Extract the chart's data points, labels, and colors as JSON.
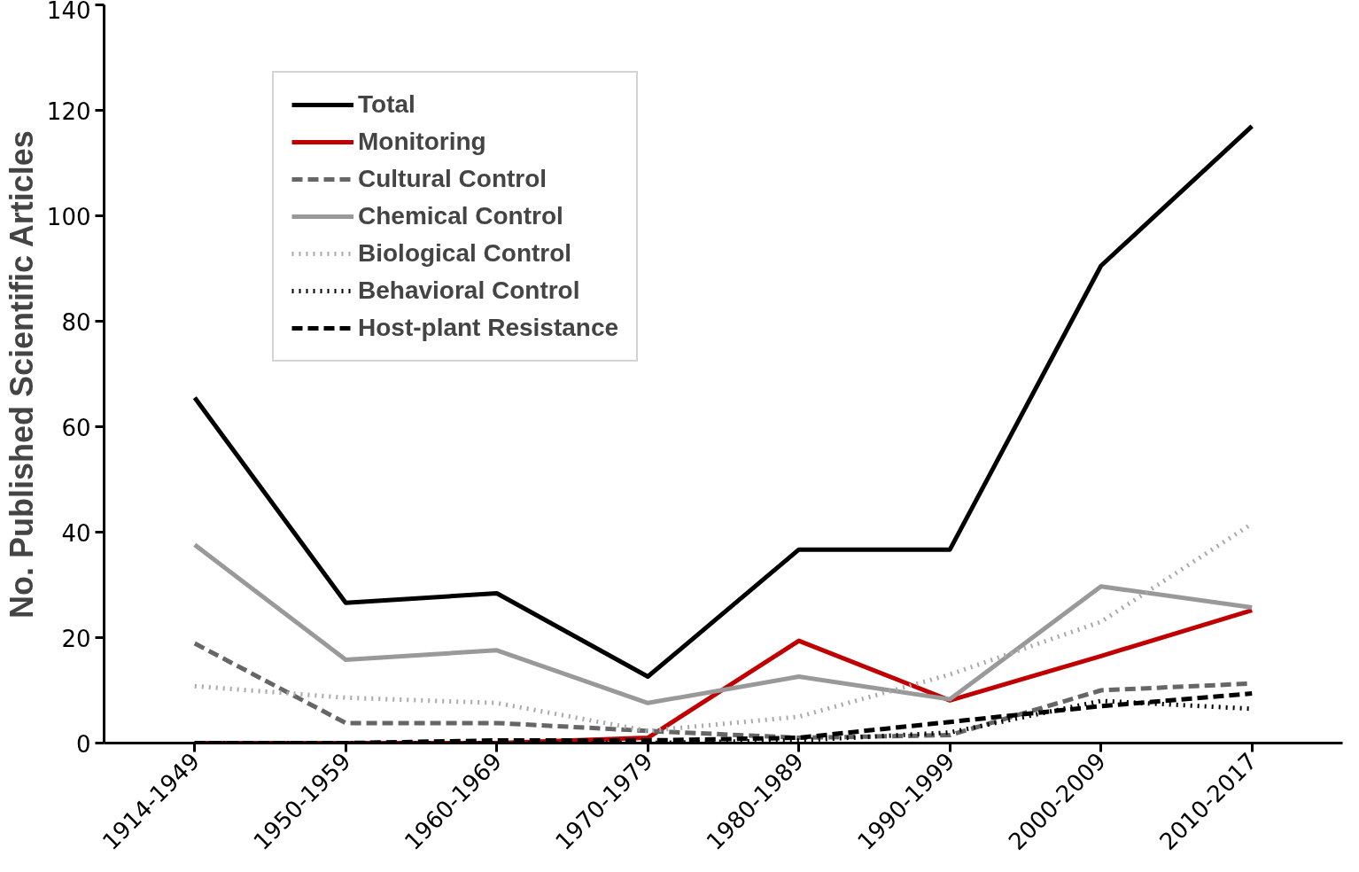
{
  "chart_data": {
    "type": "line",
    "ylabel": "No. Published Scientific Articles",
    "categories": [
      "1914-1949",
      "1950-1959",
      "1960-1969",
      "1970-1979",
      "1980-1989",
      "1990-1999",
      "2000-2009",
      "2010-2017"
    ],
    "series": [
      {
        "name": "Total",
        "color": "#000000",
        "line_style": "solid",
        "values": [
          65.5,
          26.6,
          28.4,
          12.6,
          36.7,
          36.7,
          90.5,
          117
        ]
      },
      {
        "name": "Monitoring",
        "color": "#c00000",
        "line_style": "solid",
        "values": [
          0,
          0,
          0,
          1,
          19.4,
          8.1,
          16.5,
          25.2
        ]
      },
      {
        "name": "Cultural Control",
        "color": "#666666",
        "line_style": "dashed",
        "values": [
          18.9,
          3.8,
          3.8,
          2.3,
          1,
          1.5,
          10,
          11.3
        ]
      },
      {
        "name": "Chemical Control",
        "color": "#999999",
        "line_style": "solid",
        "values": [
          37.6,
          15.8,
          17.6,
          7.6,
          12.6,
          8.3,
          29.7,
          25.7
        ]
      },
      {
        "name": "Biological Control",
        "color": "#aaaaaa",
        "line_style": "dotted",
        "values": [
          10.8,
          8.6,
          7.6,
          2.3,
          5,
          13,
          23,
          41.6
        ]
      },
      {
        "name": "Behavioral Control",
        "color": "#000000",
        "line_style": "dotted",
        "values": [
          0,
          0,
          0,
          0,
          0.5,
          2,
          8,
          6.5
        ]
      },
      {
        "name": "Host-plant Resistance",
        "color": "#000000",
        "line_style": "dashed",
        "values": [
          0,
          0,
          0.5,
          0.5,
          1,
          4,
          7,
          9.4
        ]
      }
    ],
    "ylim": [
      0,
      140
    ],
    "yticks": [
      0,
      20,
      40,
      60,
      80,
      100,
      120,
      140
    ],
    "grid": false,
    "legend": "top left"
  }
}
